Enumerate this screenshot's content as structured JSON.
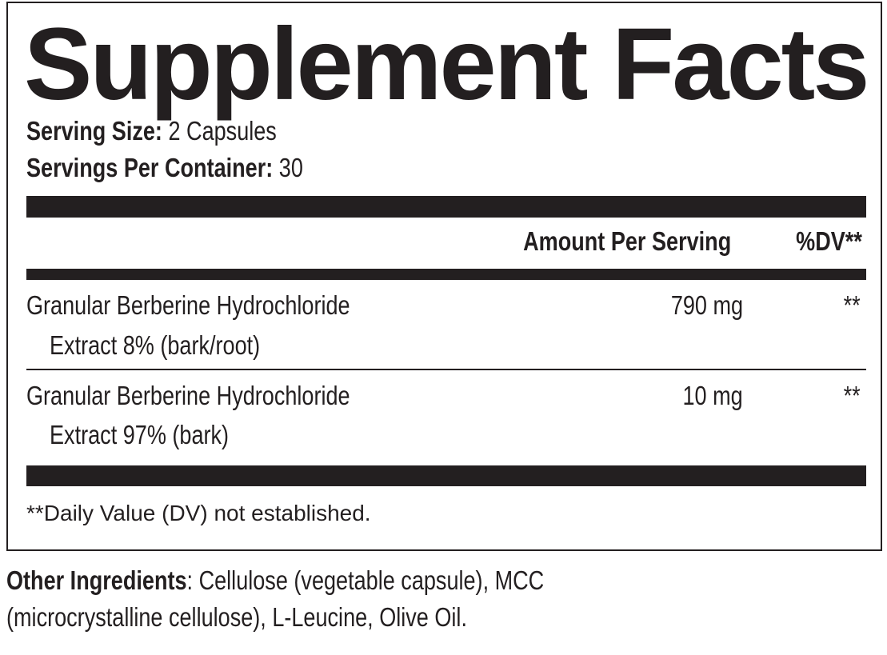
{
  "title": "Supplement Facts",
  "serving_size": {
    "label": "Serving Size:",
    "value": "2 Capsules"
  },
  "servings_per_container": {
    "label": "Servings Per Container:",
    "value": "30"
  },
  "header": {
    "amount": "Amount Per Serving",
    "dv": "%DV**"
  },
  "rows": [
    {
      "name_line1": "Granular Berberine Hydrochloride",
      "name_line2": "Extract 8% (bark/root)",
      "amount": "790 mg",
      "dv": "**"
    },
    {
      "name_line1": "Granular Berberine Hydrochloride",
      "name_line2": "Extract 97% (bark)",
      "amount": "10 mg",
      "dv": "**"
    }
  ],
  "footnote": "**Daily Value (DV) not established.",
  "other_ingredients": {
    "label": "Other Ingredients",
    "line1": ": Cellulose (vegetable capsule), MCC",
    "line2": "(microcrystalline cellulose), L-Leucine, Olive Oil."
  }
}
